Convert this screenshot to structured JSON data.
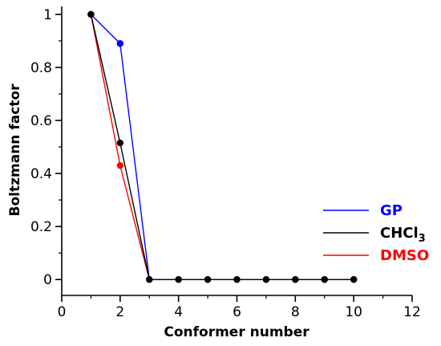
{
  "chart_data": {
    "type": "line",
    "xlabel": "Conformer number",
    "ylabel": "Boltzmann factor",
    "xlim": [
      0,
      12
    ],
    "ylim": [
      -0.06,
      1.03
    ],
    "xticks": [
      "0",
      "2",
      "4",
      "6",
      "8",
      "10",
      "12"
    ],
    "yticks": [
      "0",
      "0.2",
      "0.4",
      "0.6",
      "0.8",
      "1"
    ],
    "grid": false,
    "legend_position": "bottom-right",
    "series": [
      {
        "name": "GP",
        "color": "#0000ff",
        "x": [
          1,
          2,
          3,
          4,
          5,
          6,
          7,
          8,
          9,
          10
        ],
        "y": [
          1,
          0.89,
          0,
          0,
          0,
          0,
          0,
          0,
          0,
          0
        ]
      },
      {
        "name": "CHCl3",
        "color": "#000000",
        "x": [
          1,
          2,
          3,
          4,
          5,
          6,
          7,
          8,
          9,
          10
        ],
        "y": [
          1,
          0.515,
          0,
          0,
          0,
          0,
          0,
          0,
          0,
          0
        ]
      },
      {
        "name": "DMSO",
        "color": "#ff0000",
        "x": [
          1,
          2,
          3,
          4,
          5,
          6,
          7,
          8,
          9,
          10
        ],
        "y": [
          1,
          0.43,
          0,
          0,
          0,
          0,
          0,
          0,
          0,
          0
        ]
      }
    ]
  },
  "legend": {
    "gp": "GP",
    "chcl3_main": "CHCl",
    "chcl3_sub": "3",
    "dmso": "DMSO"
  }
}
